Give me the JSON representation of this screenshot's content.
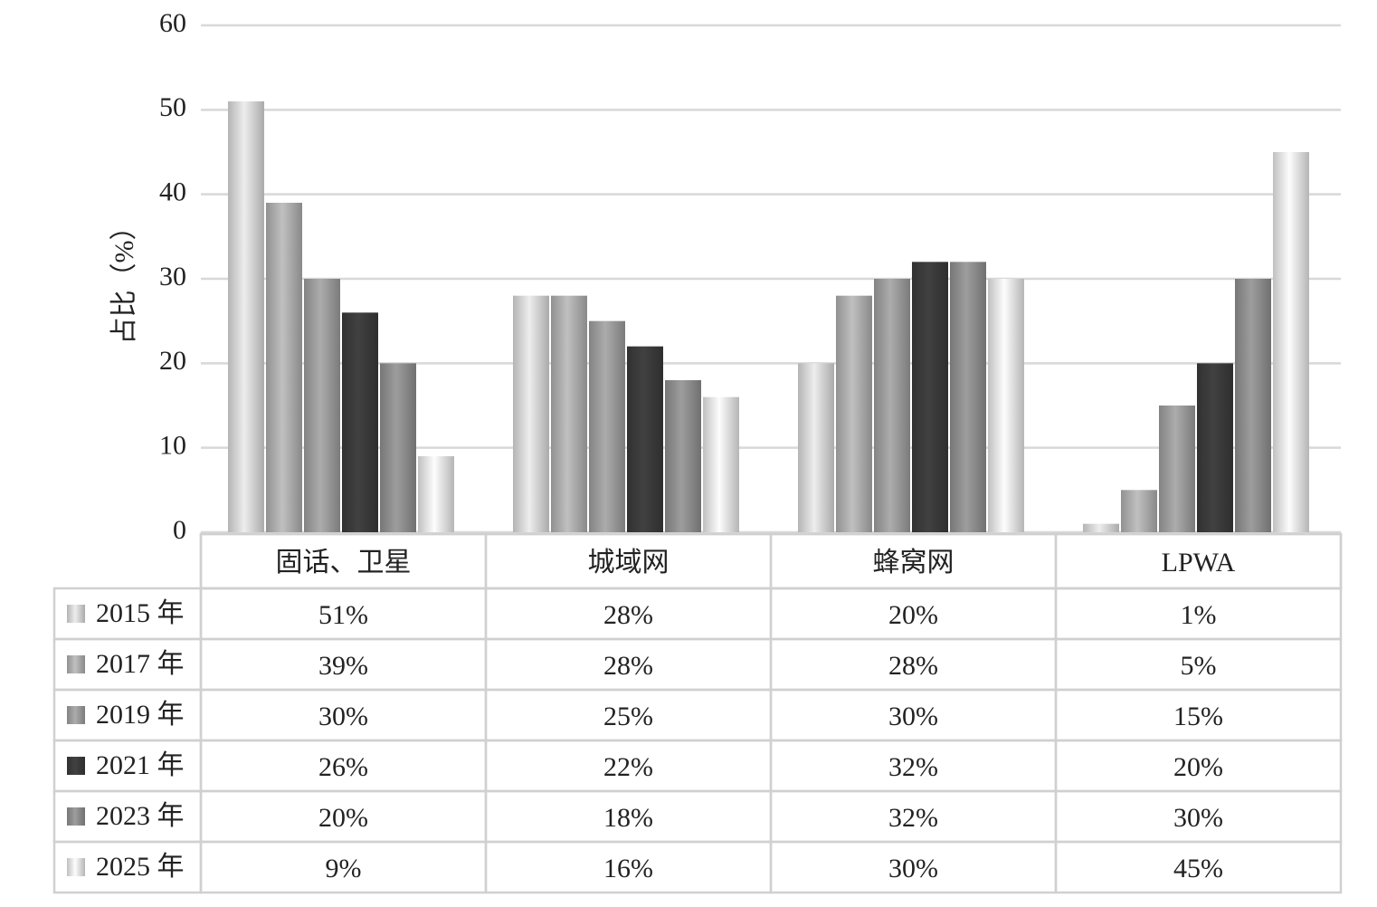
{
  "chart_data": {
    "type": "bar",
    "y_label": "占比（%）",
    "categories": [
      "固话、卫星",
      "城域网",
      "蜂窝网",
      "LPWA"
    ],
    "series": [
      {
        "name": "2015 年",
        "color": "#d4d4d4",
        "values": [
          51,
          28,
          20,
          1
        ],
        "value_labels": [
          "51%",
          "28%",
          "20%",
          "1%"
        ]
      },
      {
        "name": "2017 年",
        "color": "#ababab",
        "values": [
          39,
          28,
          28,
          5
        ],
        "value_labels": [
          "39%",
          "28%",
          "28%",
          "5%"
        ]
      },
      {
        "name": "2019 年",
        "color": "#9a9a9a",
        "values": [
          30,
          25,
          30,
          15
        ],
        "value_labels": [
          "30%",
          "25%",
          "30%",
          "15%"
        ]
      },
      {
        "name": "2021 年",
        "color": "#3a3a3a",
        "values": [
          26,
          22,
          32,
          20
        ],
        "value_labels": [
          "26%",
          "22%",
          "32%",
          "20%"
        ]
      },
      {
        "name": "2023 年",
        "color": "#8c8c8c",
        "values": [
          20,
          18,
          32,
          30
        ],
        "value_labels": [
          "20%",
          "18%",
          "32%",
          "30%"
        ]
      },
      {
        "name": "2025 年",
        "color": "#e2e2e2",
        "values": [
          9,
          16,
          30,
          45
        ],
        "value_labels": [
          "9%",
          "16%",
          "30%",
          "45%"
        ]
      }
    ],
    "ylim": [
      0,
      60
    ],
    "yticks": [
      0,
      10,
      20,
      30,
      40,
      50,
      60
    ],
    "grid": true
  }
}
